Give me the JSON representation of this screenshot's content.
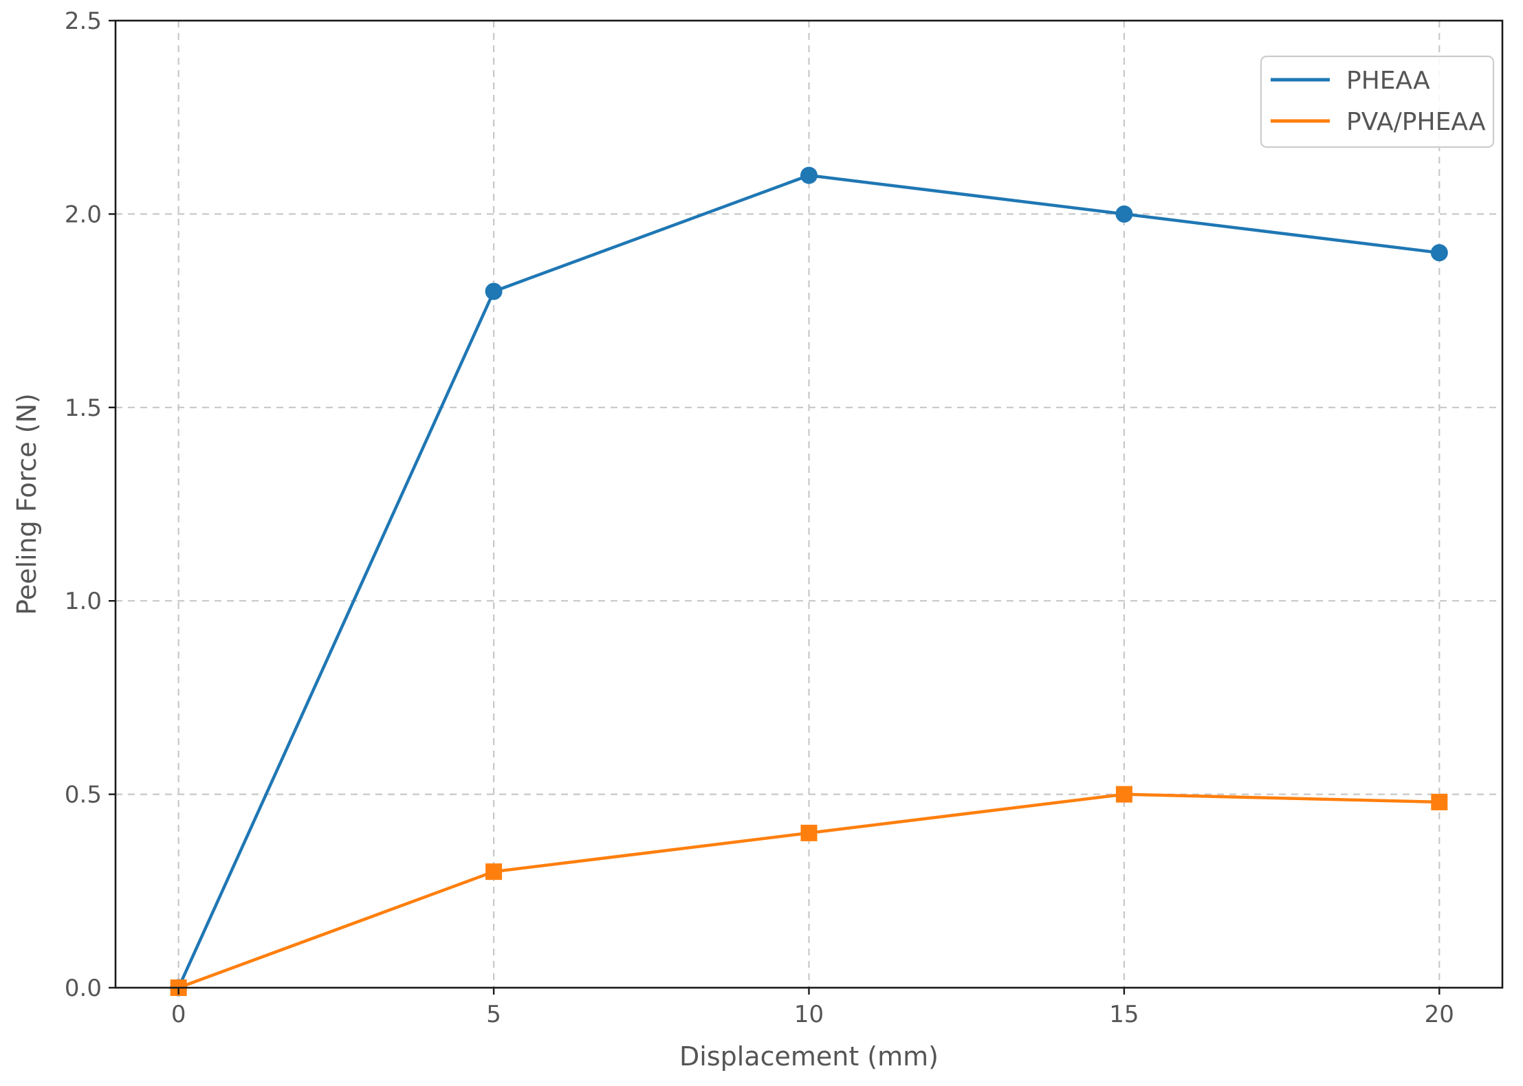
{
  "chart_data": {
    "type": "line",
    "title": "",
    "xlabel": "Displacement (mm)",
    "ylabel": "Peeling Force (N)",
    "xlim": [
      -1,
      21
    ],
    "ylim": [
      0,
      2.5
    ],
    "x_ticks": [
      "0",
      "5",
      "10",
      "15",
      "20"
    ],
    "y_ticks": [
      "0.0",
      "0.5",
      "1.0",
      "1.5",
      "2.0",
      "2.5"
    ],
    "grid": true,
    "legend_position": "top-right",
    "x": [
      0,
      5,
      10,
      15,
      20
    ],
    "series": [
      {
        "name": "PHEAA",
        "color": "#1f77b4",
        "marker": "circle",
        "values": [
          0,
          1.8,
          2.1,
          2.0,
          1.9
        ]
      },
      {
        "name": "PVA/PHEAA",
        "color": "#ff7f0e",
        "marker": "square",
        "values": [
          0,
          0.3,
          0.4,
          0.5,
          0.48
        ]
      }
    ]
  }
}
